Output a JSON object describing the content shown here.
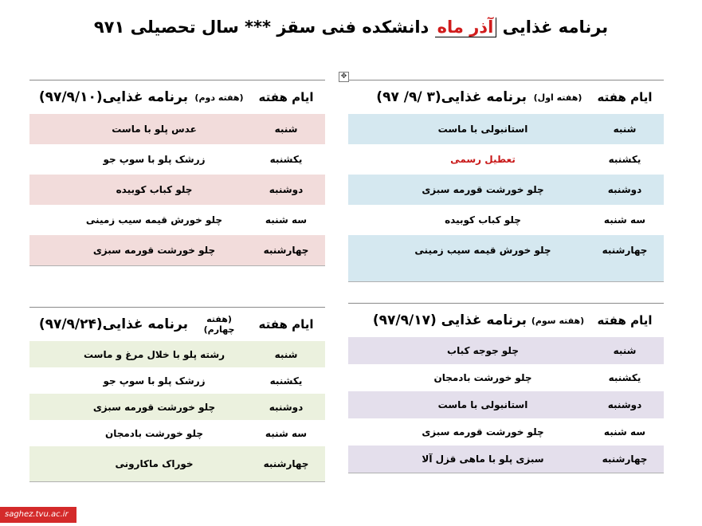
{
  "title": {
    "prefix": "برنامه غذایی",
    "month": "آذر ماه",
    "suffix": "دانشکده فنی سقز *** سال تحصیلی ۹۷۱"
  },
  "column_header": "ایام هفته",
  "weeks": [
    {
      "tag": "(هفته اول)",
      "title": "برنامه غذایی(۳ /۹/ ۹۷)",
      "color": "#d5e8f0",
      "rows": [
        {
          "day": "شنبه",
          "food": "استانبولی با ماست"
        },
        {
          "day": "یکشنبه",
          "food": "تعطیل رسمی"
        },
        {
          "day": "دوشنبه",
          "food": "چلو خورشت قورمه سبزی"
        },
        {
          "day": "سه شنبه",
          "food": "چلو کباب کوبیده"
        },
        {
          "day": "چهارشنبه",
          "food": "چلو خورش قیمه سیب زمینی"
        }
      ]
    },
    {
      "tag": "(هفته دوم)",
      "title": "برنامه غذایی(۹۷/۹/۱۰)",
      "color": "#f2dcdb",
      "rows": [
        {
          "day": "شنبه",
          "food": "عدس پلو با ماست"
        },
        {
          "day": "یکشنبه",
          "food": "زرشک پلو با سوپ جو"
        },
        {
          "day": "دوشنبه",
          "food": "چلو کباب کوبیده"
        },
        {
          "day": "سه شنبه",
          "food": "چلو خورش قیمه سیب زمینی"
        },
        {
          "day": "چهارشنبه",
          "food": "چلو خورشت قورمه سبزی"
        }
      ]
    },
    {
      "tag": "(هفته سوم)",
      "title": "برنامه غذایی (۹۷/۹/۱۷)",
      "color": "#e4dfec",
      "rows": [
        {
          "day": "شنبه",
          "food": "چلو جوجه کباب"
        },
        {
          "day": "یکشنبه",
          "food": "چلو خورشت بادمجان"
        },
        {
          "day": "دوشنبه",
          "food": "استانبولی با ماست"
        },
        {
          "day": "سه شنبه",
          "food": "چلو خورشت قورمه سبزی"
        },
        {
          "day": "چهارشنبه",
          "food": "سبزی پلو با ماهی قزل آلا"
        }
      ]
    },
    {
      "tag": "(هفته چهارم)",
      "title": "برنامه غذایی(۹۷/۹/۲۴)",
      "color": "#ebf1de",
      "rows": [
        {
          "day": "شنبه",
          "food": "رشته پلو با خلال مرغ و ماست"
        },
        {
          "day": "یکشنبه",
          "food": "زرشک پلو با سوپ جو"
        },
        {
          "day": "دوشنبه",
          "food": "چلو خورشت قورمه سبزی"
        },
        {
          "day": "سه شنبه",
          "food": "چلو خورشت بادمجان"
        },
        {
          "day": "چهارشنبه",
          "food": "خوراک ماکارونی"
        }
      ]
    }
  ],
  "footer": "saghez.tvu.ac.ir"
}
